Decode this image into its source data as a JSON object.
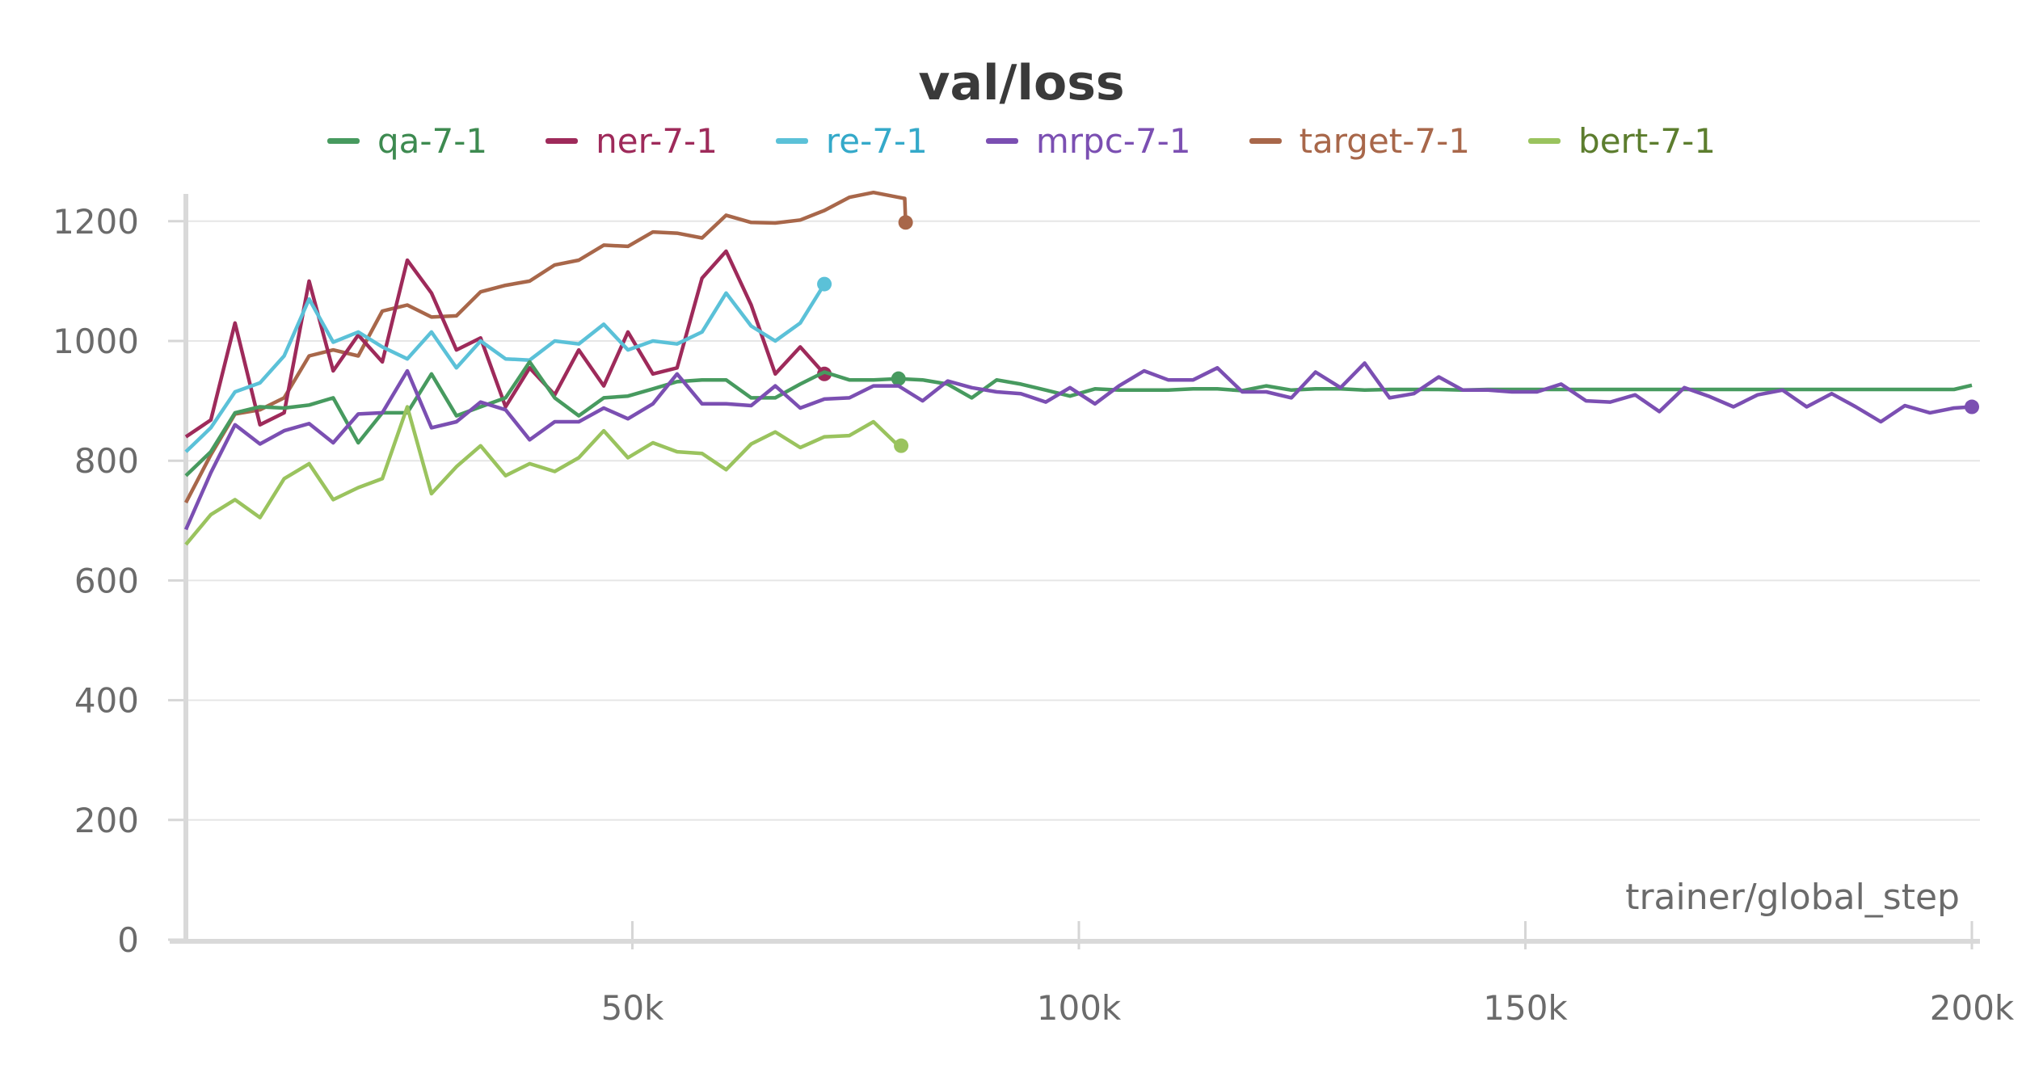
{
  "chart_data": {
    "type": "line",
    "title": "val/loss",
    "xlabel": "trainer/global_step",
    "ylabel": "",
    "xlim": [
      0,
      200000
    ],
    "ylim": [
      0,
      1250
    ],
    "x_ticks": [
      {
        "value": 50000,
        "label": "50k"
      },
      {
        "value": 100000,
        "label": "100k"
      },
      {
        "value": 150000,
        "label": "150k"
      },
      {
        "value": 200000,
        "label": "200k"
      }
    ],
    "y_ticks": [
      {
        "value": 0,
        "label": "0"
      },
      {
        "value": 200,
        "label": "200"
      },
      {
        "value": 400,
        "label": "400"
      },
      {
        "value": 600,
        "label": "600"
      },
      {
        "value": 800,
        "label": "800"
      },
      {
        "value": 1000,
        "label": "1000"
      },
      {
        "value": 1200,
        "label": "1200"
      }
    ],
    "grid": true,
    "legend_position": "top-center",
    "series": [
      {
        "name": "qa-7-1",
        "color": "#479a5f",
        "label_color": "#3d8a50",
        "x": [
          0,
          2800,
          5500,
          8300,
          11000,
          13800,
          16500,
          19300,
          22000,
          24800,
          27500,
          30300,
          33000,
          35800,
          38500,
          41300,
          44000,
          46800,
          49500,
          52300,
          55000,
          57800,
          60500,
          63300,
          66000,
          68800,
          71500,
          74300,
          77000,
          79800,
          82500,
          85300,
          88000,
          90800,
          93500,
          96300,
          99000,
          101800,
          104500,
          107300,
          110000,
          112800,
          115500,
          118300,
          121000,
          123800,
          126500,
          129300,
          132000,
          134800,
          137500,
          140300,
          143000,
          145800,
          148500,
          151300,
          154000,
          156800,
          159500,
          162300,
          165000,
          167800,
          170500,
          173300,
          176000,
          178800,
          181500,
          184300,
          187000,
          189800,
          192500,
          195300,
          198000,
          200000
        ],
        "values": [
          775,
          815,
          880,
          890,
          888,
          893,
          905,
          830,
          880,
          880,
          945,
          875,
          890,
          905,
          965,
          905,
          875,
          905,
          908,
          920,
          932,
          935,
          935,
          905,
          905,
          928,
          948,
          935,
          935,
          937,
          935,
          928,
          905,
          935,
          928,
          918,
          908,
          920,
          918,
          918,
          918,
          920,
          920,
          917,
          925,
          918,
          920,
          920,
          918,
          919,
          919,
          919,
          918,
          919,
          919,
          919,
          919,
          919,
          919,
          919,
          919,
          919,
          919,
          919,
          919,
          919,
          919,
          919,
          919,
          919,
          919,
          919,
          919,
          926
        ],
        "end_index": 29
      },
      {
        "name": "ner-7-1",
        "color": "#9e2a5a",
        "label_color": "#9e2a5a",
        "x": [
          0,
          2800,
          5500,
          8300,
          11000,
          13800,
          16500,
          19300,
          22000,
          24800,
          27500,
          30300,
          33000,
          35800,
          38500,
          41300,
          44000,
          46800,
          49500,
          52300,
          55000,
          57800,
          60500,
          63300,
          66000,
          68800,
          71500
        ],
        "values": [
          840,
          868,
          1030,
          860,
          880,
          1100,
          950,
          1010,
          965,
          1135,
          1080,
          985,
          1005,
          890,
          955,
          910,
          985,
          925,
          1015,
          945,
          955,
          1105,
          1150,
          1060,
          945,
          990,
          945
        ]
      },
      {
        "name": "re-7-1",
        "color": "#5bc1d8",
        "label_color": "#34a9c9",
        "x": [
          0,
          2800,
          5500,
          8300,
          11000,
          13800,
          16500,
          19300,
          22000,
          24800,
          27500,
          30300,
          33000,
          35800,
          38500,
          41300,
          44000,
          46800,
          49500,
          52300,
          55000,
          57800,
          60500,
          63300,
          66000,
          68800,
          71500
        ],
        "values": [
          815,
          855,
          915,
          930,
          975,
          1070,
          998,
          1015,
          990,
          970,
          1015,
          955,
          1000,
          970,
          968,
          1000,
          995,
          1028,
          985,
          1000,
          995,
          1015,
          1080,
          1025,
          1000,
          1030,
          1095
        ]
      },
      {
        "name": "mrpc-7-1",
        "color": "#7b4fb2",
        "label_color": "#7b4fb2",
        "x": [
          0,
          2800,
          5500,
          8300,
          11000,
          13800,
          16500,
          19300,
          22000,
          24800,
          27500,
          30300,
          33000,
          35800,
          38500,
          41300,
          44000,
          46800,
          49500,
          52300,
          55000,
          57800,
          60500,
          63300,
          66000,
          68800,
          71500,
          74300,
          77000,
          79800,
          82500,
          85300,
          88000,
          90800,
          93500,
          96300,
          99000,
          101800,
          104500,
          107300,
          110000,
          112800,
          115500,
          118300,
          121000,
          123800,
          126500,
          129300,
          132000,
          134800,
          137500,
          140300,
          143000,
          145800,
          148500,
          151300,
          154000,
          156800,
          159500,
          162300,
          165000,
          167800,
          170500,
          173300,
          176000,
          178800,
          181500,
          184300,
          187000,
          189800,
          192500,
          195300,
          198000,
          200000
        ],
        "values": [
          685,
          780,
          860,
          828,
          850,
          862,
          830,
          878,
          880,
          950,
          855,
          865,
          898,
          885,
          835,
          865,
          865,
          888,
          870,
          895,
          945,
          895,
          895,
          892,
          925,
          888,
          903,
          905,
          925,
          925,
          900,
          933,
          922,
          915,
          912,
          898,
          922,
          895,
          925,
          950,
          935,
          935,
          955,
          915,
          915,
          905,
          948,
          922,
          963,
          905,
          912,
          940,
          918,
          918,
          915,
          915,
          928,
          900,
          898,
          910,
          882,
          922,
          908,
          890,
          910,
          918,
          890,
          912,
          890,
          865,
          892,
          880,
          888,
          890
        ],
        "end_index": 73
      },
      {
        "name": "target-7-1",
        "color": "#a8674a",
        "label_color": "#a8674a",
        "x": [
          0,
          2800,
          5500,
          8300,
          11000,
          13800,
          16500,
          19300,
          22000,
          24800,
          27500,
          30300,
          33000,
          35800,
          38500,
          41300,
          44000,
          46800,
          49500,
          52300,
          55000,
          57800,
          60500,
          63300,
          66000,
          68800,
          71500,
          74300,
          77000,
          79800,
          80500,
          80600
        ],
        "values": [
          730,
          810,
          878,
          885,
          905,
          975,
          985,
          975,
          1050,
          1060,
          1040,
          1042,
          1082,
          1093,
          1100,
          1127,
          1135,
          1160,
          1158,
          1182,
          1180,
          1172,
          1210,
          1198,
          1197,
          1202,
          1218,
          1240,
          1248,
          1240,
          1238,
          1198
        ]
      },
      {
        "name": "bert-7-1",
        "color": "#9ac35e",
        "label_color": "#5c7d2e",
        "x": [
          0,
          2800,
          5500,
          8300,
          11000,
          13800,
          16500,
          19300,
          22000,
          24800,
          27500,
          30300,
          33000,
          35800,
          38500,
          41300,
          44000,
          46800,
          49500,
          52300,
          55000,
          57800,
          60500,
          63300,
          66000,
          68800,
          71500,
          74300,
          77000,
          79800,
          80000,
          80100
        ],
        "values": [
          660,
          710,
          735,
          705,
          770,
          795,
          735,
          755,
          770,
          890,
          745,
          790,
          825,
          775,
          795,
          782,
          805,
          850,
          805,
          830,
          815,
          812,
          785,
          828,
          848,
          822,
          840,
          842,
          865,
          825,
          825,
          825
        ]
      }
    ]
  }
}
